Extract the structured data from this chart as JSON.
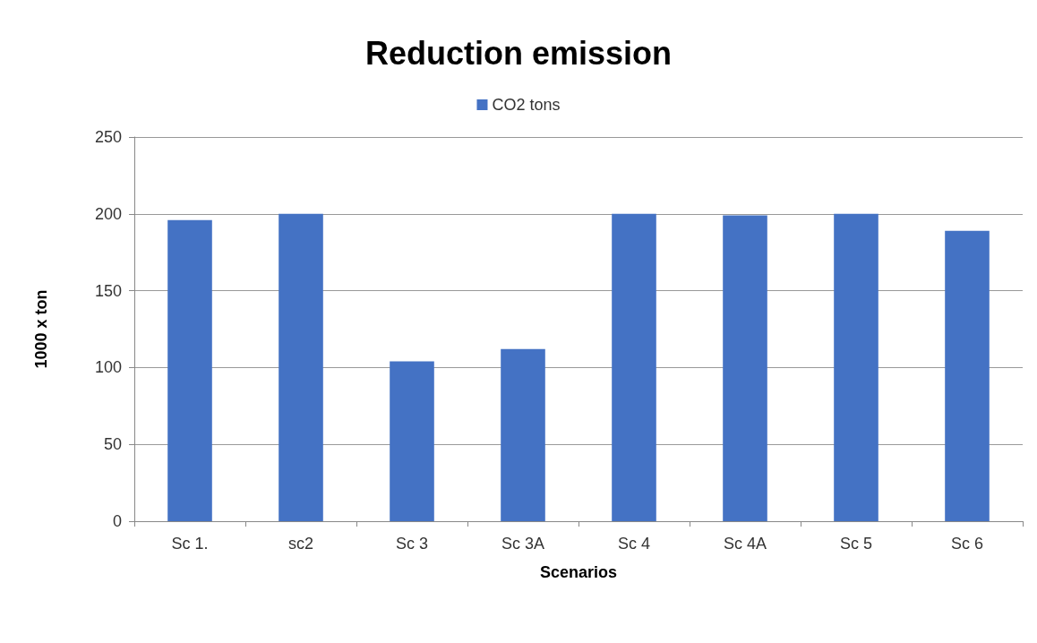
{
  "chart_data": {
    "type": "bar",
    "title": "Reduction emission",
    "xlabel": "Scenarios",
    "ylabel": "1000 x ton",
    "categories": [
      "Sc 1.",
      "sc2",
      "Sc 3",
      "Sc 3A",
      "Sc 4",
      "Sc 4A",
      "Sc 5",
      "Sc 6"
    ],
    "series": [
      {
        "name": "CO2 tons",
        "color": "#4472c4",
        "values": [
          196,
          200,
          104,
          112,
          200,
          199,
          200,
          189
        ]
      }
    ],
    "ylim": [
      0,
      250
    ],
    "yticks": [
      0,
      50,
      100,
      150,
      200,
      250
    ],
    "grid": "y",
    "legend": "top"
  }
}
